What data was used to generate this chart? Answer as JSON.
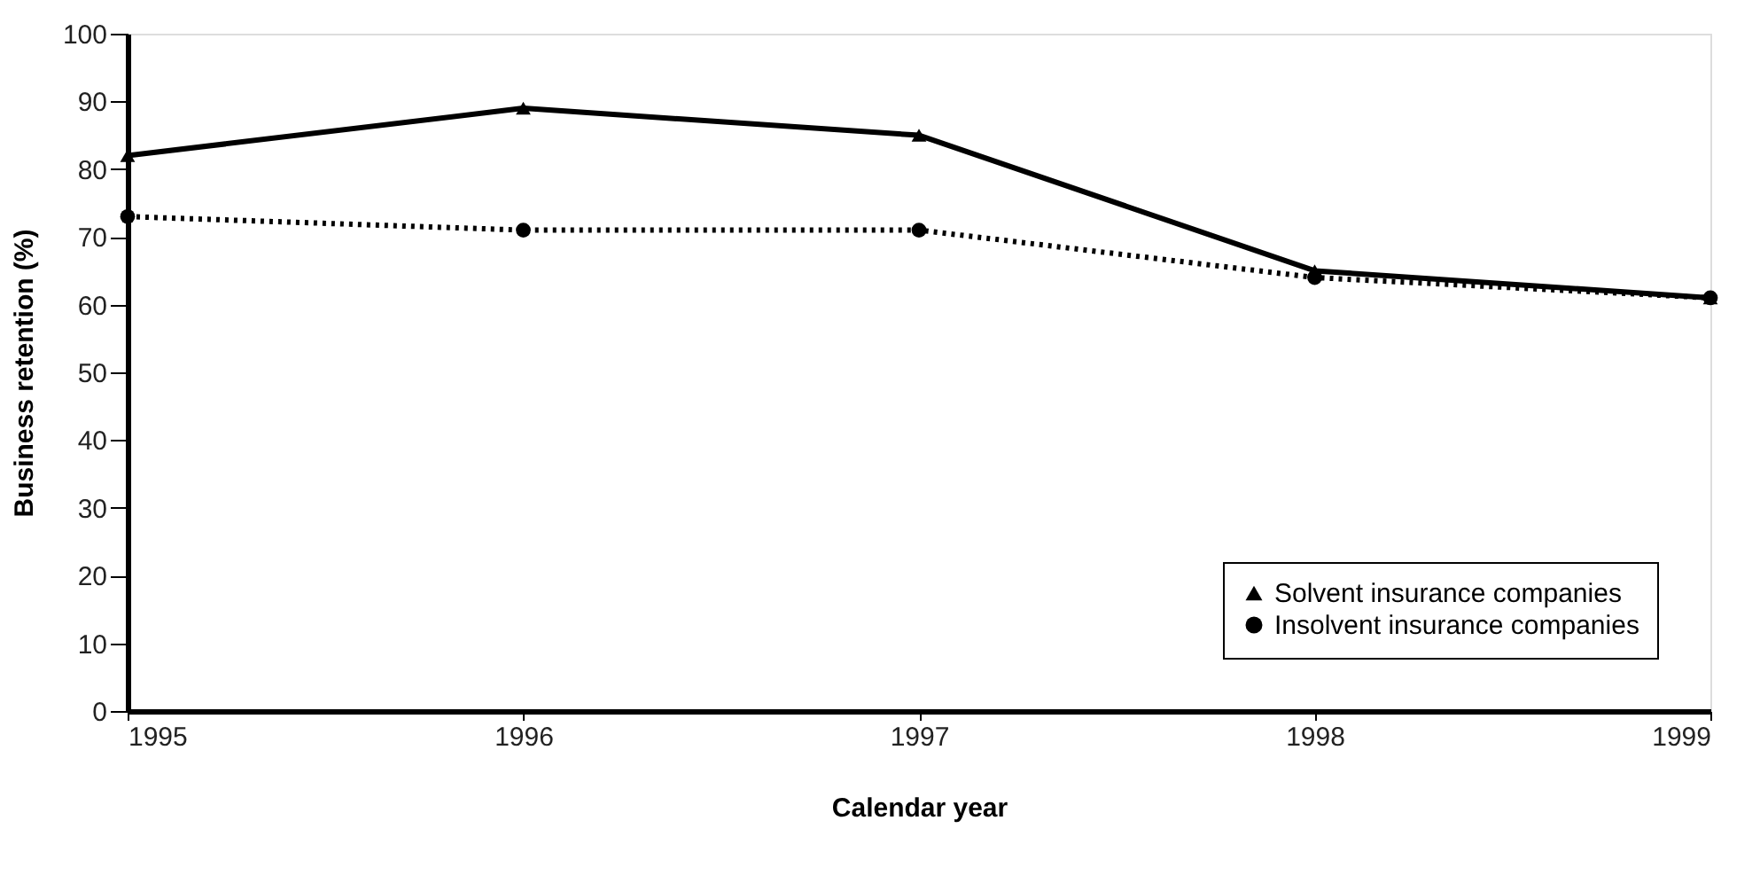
{
  "chart_data": {
    "type": "line",
    "xlabel": "Calendar year",
    "ylabel": "Business retention (%)",
    "x": [
      1995,
      1996,
      1997,
      1998,
      1999
    ],
    "xlim": [
      1995,
      1999
    ],
    "xticks": [
      1995,
      1996,
      1997,
      1998,
      1999
    ],
    "ylim": [
      0,
      100
    ],
    "yticks": [
      0,
      10,
      20,
      30,
      40,
      50,
      60,
      70,
      80,
      90,
      100
    ],
    "grid": false,
    "legend": "bottom right",
    "series": [
      {
        "name": "Solvent insurance companies",
        "color": "#000000",
        "values": [
          82,
          89,
          85,
          65,
          61
        ],
        "marker": "triangle",
        "line_style": "solid"
      },
      {
        "name": "Insolvent insurance companies",
        "color": "#000000",
        "values": [
          73,
          71,
          71,
          64,
          61
        ],
        "marker": "circle",
        "line_style": "dotted"
      }
    ]
  }
}
